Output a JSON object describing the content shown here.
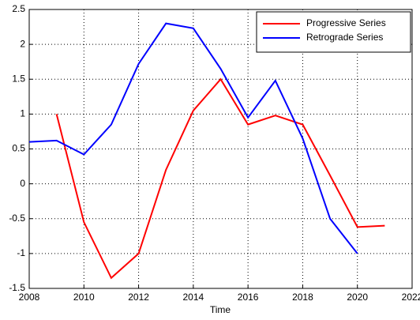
{
  "chart_data": {
    "type": "line",
    "xlabel": "Time",
    "x": [
      2008,
      2009,
      2010,
      2011,
      2012,
      2013,
      2014,
      2015,
      2016,
      2017,
      2018,
      2019,
      2020,
      2021
    ],
    "series": [
      {
        "name": "Progressive Series",
        "color": "#ff0000",
        "values": [
          null,
          1.0,
          -0.55,
          -1.35,
          -1.0,
          0.2,
          1.05,
          1.5,
          0.85,
          0.98,
          0.85,
          0.12,
          -0.62,
          -0.6
        ]
      },
      {
        "name": "Retrograde Series",
        "color": "#0000ff",
        "values": [
          0.6,
          0.62,
          0.42,
          0.85,
          1.72,
          2.3,
          2.23,
          1.65,
          0.95,
          1.48,
          0.65,
          -0.5,
          -1.0,
          null
        ]
      }
    ],
    "xlim": [
      2008,
      2022
    ],
    "xticks": [
      2008,
      2010,
      2012,
      2014,
      2016,
      2018,
      2020,
      2022
    ],
    "ylim": [
      -1.5,
      2.5
    ],
    "yticks": [
      -1.5,
      -1,
      -0.5,
      0,
      0.5,
      1,
      1.5,
      2,
      2.5
    ],
    "grid": true,
    "legend": "top-right"
  }
}
